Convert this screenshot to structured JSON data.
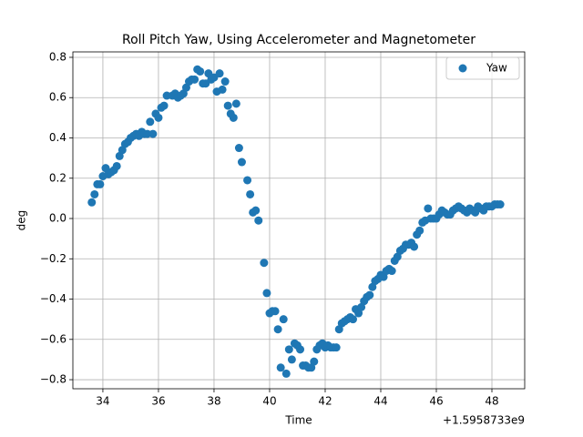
{
  "chart_data": {
    "type": "scatter",
    "title": "Roll Pitch Yaw, Using Accelerometer and Magnetometer",
    "xlabel": "Time",
    "ylabel": "deg",
    "x_offset_text": "+1.5958733e9",
    "legend": "upper right",
    "grid": true,
    "xlim": [
      32.92,
      49.18
    ],
    "ylim": [
      -0.845,
      0.827
    ],
    "xticks": [
      34,
      36,
      38,
      40,
      42,
      44,
      46,
      48
    ],
    "yticks": [
      {
        "value": -0.8,
        "label": "−0.8"
      },
      {
        "value": -0.6,
        "label": "−0.6"
      },
      {
        "value": -0.4,
        "label": "−0.4"
      },
      {
        "value": -0.2,
        "label": "−0.2"
      },
      {
        "value": 0,
        "label": "0.0"
      },
      0.2,
      0.4,
      0.6,
      0.8
    ],
    "series": [
      {
        "name": "Yaw",
        "color": "#1f77b4",
        "x": [
          33.6,
          33.7,
          33.8,
          33.9,
          34.0,
          34.1,
          34.2,
          34.3,
          34.4,
          34.5,
          34.6,
          34.7,
          34.8,
          34.9,
          35.0,
          35.1,
          35.2,
          35.3,
          35.4,
          35.5,
          35.6,
          35.7,
          35.8,
          35.9,
          36.0,
          36.1,
          36.2,
          36.3,
          36.5,
          36.6,
          36.7,
          36.8,
          36.9,
          37.0,
          37.1,
          37.2,
          37.3,
          37.4,
          37.5,
          37.6,
          37.7,
          37.8,
          37.9,
          38.0,
          38.1,
          38.2,
          38.3,
          38.4,
          38.5,
          38.6,
          38.7,
          38.8,
          38.9,
          39.0,
          39.2,
          39.3,
          39.4,
          39.5,
          39.6,
          39.8,
          39.9,
          40.0,
          40.1,
          40.2,
          40.3,
          40.4,
          40.5,
          40.6,
          40.7,
          40.8,
          40.9,
          41.0,
          41.1,
          41.2,
          41.3,
          41.4,
          41.5,
          41.6,
          41.7,
          41.8,
          41.9,
          42.0,
          42.1,
          42.2,
          42.3,
          42.4,
          42.5,
          42.6,
          42.7,
          42.8,
          42.9,
          43.0,
          43.1,
          43.2,
          43.3,
          43.4,
          43.5,
          43.6,
          43.7,
          43.8,
          43.9,
          44.0,
          44.1,
          44.2,
          44.3,
          44.4,
          44.5,
          44.6,
          44.7,
          44.8,
          44.9,
          45.0,
          45.1,
          45.2,
          45.3,
          45.4,
          45.5,
          45.6,
          45.7,
          45.8,
          45.9,
          46.0,
          46.1,
          46.2,
          46.3,
          46.4,
          46.5,
          46.6,
          46.7,
          46.8,
          46.9,
          47.0,
          47.1,
          47.2,
          47.3,
          47.4,
          47.5,
          47.6,
          47.7,
          47.8,
          47.9,
          48.0,
          48.1,
          48.2,
          48.3
        ],
        "values": [
          0.08,
          0.12,
          0.17,
          0.17,
          0.21,
          0.25,
          0.22,
          0.23,
          0.24,
          0.26,
          0.31,
          0.34,
          0.37,
          0.38,
          0.4,
          0.41,
          0.42,
          0.41,
          0.43,
          0.42,
          0.42,
          0.48,
          0.42,
          0.52,
          0.5,
          0.55,
          0.56,
          0.61,
          0.61,
          0.62,
          0.6,
          0.61,
          0.62,
          0.65,
          0.68,
          0.69,
          0.69,
          0.74,
          0.73,
          0.67,
          0.67,
          0.72,
          0.69,
          0.7,
          0.63,
          0.72,
          0.64,
          0.68,
          0.56,
          0.52,
          0.5,
          0.57,
          0.35,
          0.28,
          0.19,
          0.12,
          0.03,
          0.04,
          -0.01,
          -0.22,
          -0.37,
          -0.47,
          -0.46,
          -0.46,
          -0.55,
          -0.74,
          -0.5,
          -0.77,
          -0.65,
          -0.7,
          -0.62,
          -0.63,
          -0.65,
          -0.73,
          -0.73,
          -0.74,
          -0.74,
          -0.71,
          -0.65,
          -0.63,
          -0.62,
          -0.64,
          -0.63,
          -0.64,
          -0.64,
          -0.64,
          -0.55,
          -0.52,
          -0.51,
          -0.5,
          -0.49,
          -0.5,
          -0.45,
          -0.47,
          -0.44,
          -0.41,
          -0.39,
          -0.38,
          -0.34,
          -0.31,
          -0.3,
          -0.28,
          -0.29,
          -0.26,
          -0.25,
          -0.26,
          -0.21,
          -0.19,
          -0.16,
          -0.15,
          -0.13,
          -0.13,
          -0.12,
          -0.14,
          -0.08,
          -0.06,
          -0.02,
          -0.01,
          0.05,
          0.0,
          0.0,
          0.0,
          0.02,
          0.04,
          0.03,
          0.02,
          0.02,
          0.04,
          0.05,
          0.06,
          0.05,
          0.04,
          0.03,
          0.05,
          0.04,
          0.03,
          0.06,
          0.05,
          0.04,
          0.06,
          0.06,
          0.06,
          0.07,
          0.07,
          0.07
        ]
      }
    ]
  }
}
